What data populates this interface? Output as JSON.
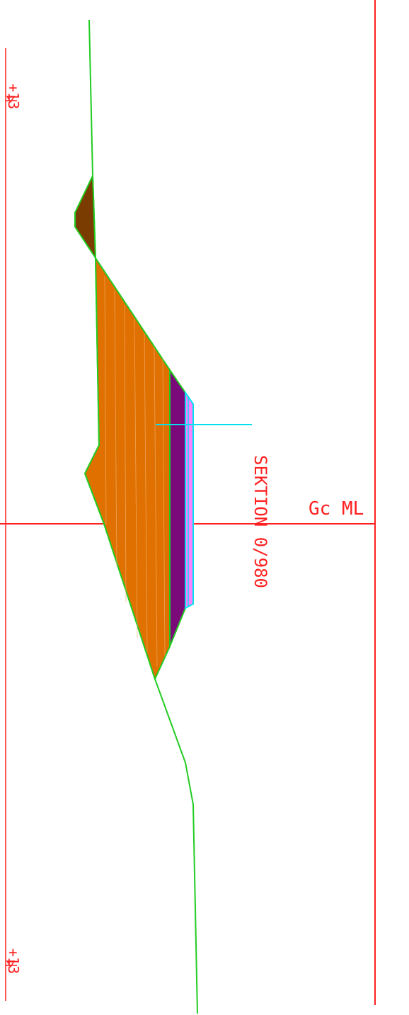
{
  "drawing": {
    "section_label": "SEKTION 0/980",
    "centerline_label": "Gc ML",
    "level_label_top": "+13",
    "level_label_bottom": "+13",
    "colors": {
      "background": "#ffffff",
      "grid_lines": "#ff2020",
      "ground_line": "#22cc22",
      "fill_body": "#e07000",
      "excavation": "#7a3c00",
      "pavement": "#7a0a7a",
      "marker": "#00e0f0"
    }
  }
}
